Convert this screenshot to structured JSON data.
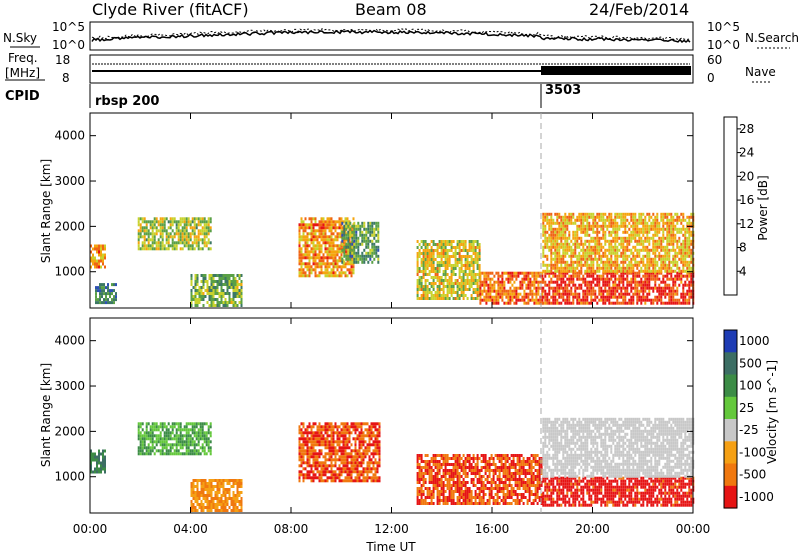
{
  "header": {
    "station": "Clyde River (fitACF)",
    "beam": "Beam 08",
    "date": "24/Feb/2014"
  },
  "top_panels": {
    "nsky_label": "N.Sky",
    "nsky_ticks": [
      "10^5",
      "10^0"
    ],
    "nsearch_label": "N.Search",
    "nsearch_ticks": [
      "10^5",
      "10^0"
    ],
    "freq_label_1": "Freq.",
    "freq_label_2": "[MHz]",
    "freq_ticks": [
      "18",
      "8"
    ],
    "nave_label": "Nave",
    "nave_ticks": [
      "60",
      "0"
    ],
    "cpid_label": "CPID",
    "cpid_values": [
      {
        "label": "rbsp 200",
        "start_hour": 0
      },
      {
        "label": "3503",
        "start_hour": 18
      }
    ]
  },
  "x_axis": {
    "label": "Time UT",
    "ticks": [
      "00:00",
      "04:00",
      "08:00",
      "12:00",
      "16:00",
      "20:00",
      "00:00"
    ]
  },
  "chart_data": [
    {
      "type": "heatmap",
      "name": "power",
      "ylabel": "Slant Range [km]",
      "xlim_hours": [
        0,
        24
      ],
      "ylim_km": [
        200,
        4500
      ],
      "yticks": [
        "1000",
        "2000",
        "3000",
        "4000"
      ],
      "colorbar": {
        "label": "Power [dB]",
        "ticks": [
          "4",
          "8",
          "12",
          "16",
          "20",
          "24",
          "28"
        ],
        "colors": [
          "#0a14e6",
          "#2d50b4",
          "#3c7864",
          "#5aa046",
          "#c8d22d",
          "#f5a50f",
          "#f06414",
          "#e61414"
        ],
        "range": [
          0,
          30
        ]
      },
      "regions": [
        {
          "hour_range": [
            0.0,
            0.6
          ],
          "range_km": [
            1100,
            1600
          ],
          "value": 22
        },
        {
          "hour_range": [
            0.2,
            1.0
          ],
          "range_km": [
            350,
            750
          ],
          "value": 10
        },
        {
          "hour_range": [
            1.9,
            4.8
          ],
          "range_km": [
            1500,
            2200
          ],
          "value": 16
        },
        {
          "hour_range": [
            4.0,
            6.0
          ],
          "range_km": [
            250,
            950
          ],
          "value": 14
        },
        {
          "hour_range": [
            8.3,
            10.5
          ],
          "range_km": [
            900,
            2200
          ],
          "value": 22
        },
        {
          "hour_range": [
            10.0,
            11.5
          ],
          "range_km": [
            1200,
            2100
          ],
          "value": 12
        },
        {
          "hour_range": [
            13.0,
            15.5
          ],
          "range_km": [
            400,
            1700
          ],
          "value": 18
        },
        {
          "hour_range": [
            15.5,
            18.0
          ],
          "range_km": [
            300,
            1000
          ],
          "value": 24
        },
        {
          "hour_range": [
            18.0,
            24.0
          ],
          "range_km": [
            300,
            1000
          ],
          "value": 27
        },
        {
          "hour_range": [
            18.0,
            24.0
          ],
          "range_km": [
            1000,
            2300
          ],
          "value": 20
        }
      ]
    },
    {
      "type": "heatmap",
      "name": "velocity",
      "ylabel": "Slant Range [km]",
      "xlim_hours": [
        0,
        24
      ],
      "ylim_km": [
        200,
        4500
      ],
      "yticks": [
        "1000",
        "2000",
        "3000",
        "4000"
      ],
      "colorbar": {
        "label": "Velocity [m s^-1]",
        "ticks": [
          "1000",
          "500",
          "100",
          "25",
          "-25",
          "-100",
          "-500",
          "-1000"
        ],
        "colors": [
          "#1e3cb4",
          "#3c6e64",
          "#3c8c46",
          "#64c83c",
          "#c8c8c8",
          "#f5a014",
          "#f0780f",
          "#e61414"
        ]
      },
      "regions": [
        {
          "hour_range": [
            0.0,
            0.6
          ],
          "range_km": [
            1100,
            1600
          ],
          "velocity": 500
        },
        {
          "hour_range": [
            1.9,
            4.8
          ],
          "range_km": [
            1500,
            2200
          ],
          "velocity": 100
        },
        {
          "hour_range": [
            4.0,
            6.0
          ],
          "range_km": [
            250,
            950
          ],
          "velocity": -100
        },
        {
          "hour_range": [
            8.3,
            11.5
          ],
          "range_km": [
            900,
            2200
          ],
          "velocity": -500
        },
        {
          "hour_range": [
            13.0,
            18.0
          ],
          "range_km": [
            400,
            1500
          ],
          "velocity": -500
        },
        {
          "hour_range": [
            18.0,
            24.0
          ],
          "range_km": [
            400,
            1000
          ],
          "velocity": -700
        },
        {
          "hour_range": [
            18.0,
            24.0
          ],
          "range_km": [
            1000,
            2300
          ],
          "velocity": 0
        }
      ]
    }
  ]
}
